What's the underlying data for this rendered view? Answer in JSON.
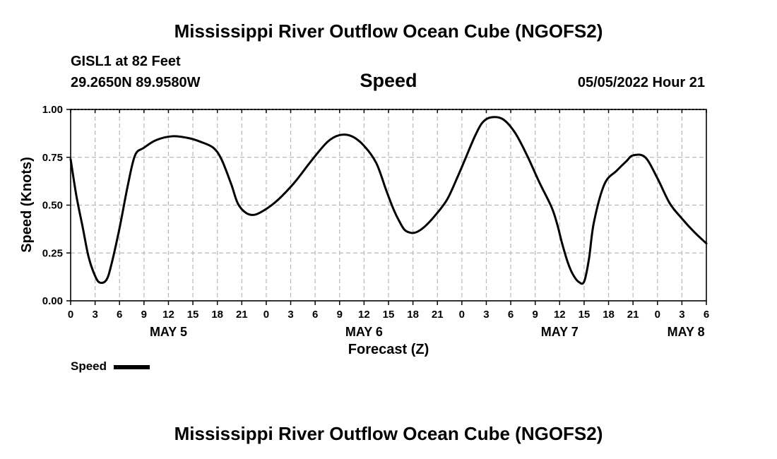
{
  "header": {
    "title_top": "Mississippi River Outflow Ocean Cube (NGOFS2)",
    "station": "GISL1 at 82 Feet",
    "coords": "29.2650N  89.9580W",
    "variable": "Speed",
    "datetime": "05/05/2022 Hour 21"
  },
  "legend": {
    "label": "Speed"
  },
  "footer": {
    "title_bottom": "Mississippi River Outflow Ocean Cube (NGOFS2)"
  },
  "chart_data": {
    "type": "line",
    "title": "Speed",
    "xlabel": "Forecast (Z)",
    "ylabel": "Speed (Knots)",
    "xlim": [
      0,
      78
    ],
    "ylim": [
      0,
      1
    ],
    "yticks": [
      0,
      0.25,
      0.5,
      0.75,
      1.0
    ],
    "ytick_labels": [
      "0.00",
      "0.25",
      "0.50",
      "0.75",
      "1.00"
    ],
    "xticks": [
      0,
      3,
      6,
      9,
      12,
      15,
      18,
      21,
      24,
      27,
      30,
      33,
      36,
      39,
      42,
      45,
      48,
      51,
      54,
      57,
      60,
      63,
      66,
      69,
      72,
      75,
      78
    ],
    "xtick_labels": [
      "0",
      "3",
      "6",
      "9",
      "12",
      "15",
      "18",
      "21",
      "0",
      "3",
      "6",
      "9",
      "12",
      "15",
      "18",
      "21",
      "0",
      "3",
      "6",
      "9",
      "12",
      "15",
      "18",
      "21",
      "0",
      "3",
      "6"
    ],
    "day_labels": [
      {
        "x": 12,
        "label": "MAY 5"
      },
      {
        "x": 36,
        "label": "MAY 6"
      },
      {
        "x": 60,
        "label": "MAY 7"
      },
      {
        "x": 75.5,
        "label": "MAY 8"
      }
    ],
    "grid": true,
    "series": [
      {
        "name": "Speed",
        "color": "#000000",
        "x": [
          0,
          0.7,
          1.5,
          2.2,
          3,
          3.6,
          4.4,
          5,
          6,
          7,
          7.9,
          9,
          10.5,
          12.5,
          14.5,
          16,
          17.5,
          18.5,
          19.7,
          20.5,
          21.5,
          22.6,
          24,
          25.5,
          27.5,
          29.5,
          31.5,
          33,
          34.5,
          36,
          37.5,
          38.7,
          39.6,
          40.4,
          41,
          41.8,
          42.5,
          43.5,
          44.8,
          46.2,
          47.5,
          48.5,
          49.6,
          50.5,
          51.5,
          53,
          54.5,
          56,
          57.5,
          59,
          59.7,
          60.3,
          61,
          61.6,
          62.3,
          63,
          63.6,
          64.2,
          65.5,
          67,
          68.2,
          69,
          70.5,
          72,
          73.5,
          75,
          76.5,
          78
        ],
        "values": [
          0.74,
          0.55,
          0.38,
          0.23,
          0.13,
          0.095,
          0.11,
          0.19,
          0.38,
          0.6,
          0.76,
          0.8,
          0.84,
          0.86,
          0.85,
          0.83,
          0.8,
          0.74,
          0.61,
          0.51,
          0.46,
          0.45,
          0.48,
          0.53,
          0.62,
          0.73,
          0.83,
          0.866,
          0.86,
          0.81,
          0.72,
          0.58,
          0.48,
          0.41,
          0.37,
          0.355,
          0.36,
          0.39,
          0.45,
          0.53,
          0.65,
          0.75,
          0.86,
          0.93,
          0.958,
          0.95,
          0.88,
          0.76,
          0.62,
          0.49,
          0.4,
          0.3,
          0.2,
          0.14,
          0.1,
          0.1,
          0.22,
          0.41,
          0.61,
          0.68,
          0.73,
          0.76,
          0.75,
          0.64,
          0.51,
          0.43,
          0.36,
          0.3
        ]
      }
    ]
  }
}
